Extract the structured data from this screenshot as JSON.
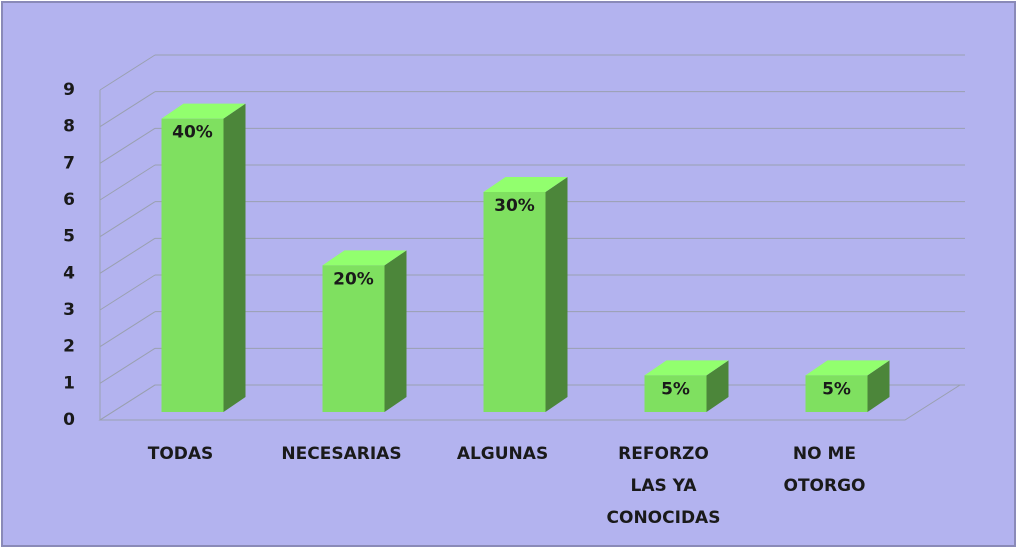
{
  "chart_data": {
    "type": "bar3d",
    "categories": [
      "TODAS",
      "NECESARIAS",
      "ALGUNAS",
      "REFORZO LAS YA CONOCIDAS",
      "NO ME OTORGO"
    ],
    "values": [
      8,
      4,
      6,
      1,
      1
    ],
    "percent_labels": [
      "40%",
      "20%",
      "30%",
      "5%",
      "5%"
    ],
    "color": "#7fe060",
    "ylim": [
      0,
      9
    ],
    "yticks": [
      0,
      1,
      2,
      3,
      4,
      5,
      6,
      7,
      8,
      9
    ],
    "grid": true
  }
}
